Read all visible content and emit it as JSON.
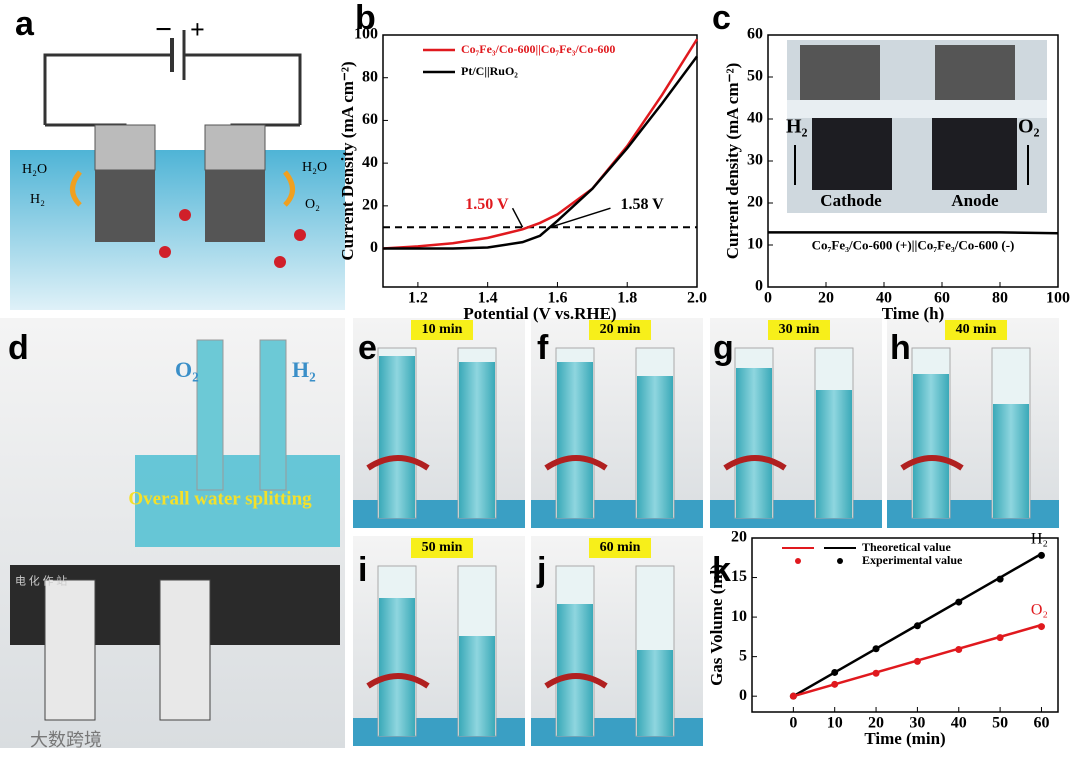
{
  "panel_labels": [
    "a",
    "b",
    "c",
    "d",
    "e",
    "f",
    "g",
    "h",
    "i",
    "j",
    "k"
  ],
  "diagram_a": {
    "battery_minus": "−",
    "battery_plus": "+",
    "left_in": "H₂O",
    "left_out": "H₂",
    "right_in": "H₂O",
    "right_out": "O₂"
  },
  "chart_data": [
    {
      "type": "line",
      "xlabel": "Potential (V vs.RHE)",
      "ylabel": "Current Density (mA cm⁻²)",
      "x": [
        1.1,
        1.2,
        1.3,
        1.4,
        1.5,
        1.55,
        1.6,
        1.7,
        1.8,
        1.9,
        2.0
      ],
      "series": [
        {
          "name": "Co₇Fe₃/Co-600||Co₇Fe₃/Co-600",
          "color": "#e0191e",
          "values": [
            0,
            1,
            2.5,
            5,
            9,
            12,
            16,
            28,
            48,
            72,
            98
          ]
        },
        {
          "name": "Pt/C||RuO₂",
          "color": "#000000",
          "values": [
            0,
            0,
            0,
            0.5,
            3,
            6,
            13,
            28,
            47,
            68,
            90
          ]
        }
      ],
      "xlim": [
        1.1,
        2.0
      ],
      "ylim": [
        -18,
        100
      ],
      "xticks": [
        1.2,
        1.4,
        1.6,
        1.8,
        {
          "value": 2.0,
          "label": "2.0"
        }
      ],
      "yticks": [
        0,
        20,
        40,
        60,
        80,
        100
      ],
      "reference_line": 10,
      "legend": "upper left",
      "annotations": [
        {
          "label": "1.50 V",
          "x": 1.5,
          "y": 10,
          "color": "#e0191e"
        },
        {
          "label": "1.58 V",
          "x": 1.58,
          "y": 10,
          "color": "#000000"
        }
      ]
    },
    {
      "type": "line",
      "xlabel": "Time (h)",
      "ylabel": "Current density (mA cm⁻²)",
      "x": [
        0,
        20,
        40,
        60,
        80,
        100
      ],
      "series": [
        {
          "name": "Co₇Fe₃/Co-600 (+)||Co₇Fe₃/Co-600 (-)",
          "color": "#000000",
          "values": [
            13,
            13,
            13,
            13,
            13,
            12.8
          ]
        }
      ],
      "xlim": [
        0,
        100
      ],
      "ylim": [
        0,
        60
      ],
      "xticks": [
        0,
        20,
        40,
        60,
        80,
        100
      ],
      "yticks": [
        0,
        10,
        20,
        30,
        40,
        50,
        60
      ],
      "series_labels": "below"
    },
    {
      "type": "line",
      "xlabel": "Time (min)",
      "ylabel": "Gas Volume (ml)",
      "x": [
        0,
        10,
        20,
        30,
        40,
        50,
        60
      ],
      "series": [
        {
          "name": "H₂",
          "color": "#000000",
          "values": [
            0,
            3,
            6,
            9,
            12,
            15,
            18
          ],
          "experimental": [
            0,
            3,
            6,
            8.9,
            11.9,
            14.8,
            17.8
          ]
        },
        {
          "name": "O₂",
          "color": "#e0191e",
          "values": [
            0,
            1.5,
            3,
            4.5,
            6,
            7.5,
            9
          ],
          "experimental": [
            0,
            1.5,
            2.9,
            4.4,
            5.9,
            7.4,
            8.8
          ]
        }
      ],
      "xlim": [
        -10,
        64
      ],
      "ylim": [
        -2,
        20
      ],
      "xticks": [
        0,
        10,
        20,
        30,
        40,
        50,
        60
      ],
      "yticks": [
        0,
        5,
        10,
        15,
        20
      ],
      "legend_entries": [
        "Theoretical value",
        "Experimental value"
      ],
      "series_labels": "end"
    }
  ],
  "inset_c": {
    "left_gas": "H₂",
    "right_gas": "O₂",
    "left_electrode": "Cathode",
    "right_electrode": "Anode"
  },
  "photo_d": {
    "left_gas": "O₂",
    "right_gas": "H₂",
    "caption": "Overall water splitting",
    "instrument_text": "电 化 作 站"
  },
  "photos": [
    {
      "label": "10 min"
    },
    {
      "label": "20 min"
    },
    {
      "label": "30 min"
    },
    {
      "label": "40 min"
    },
    {
      "label": "50 min"
    },
    {
      "label": "60 min"
    }
  ],
  "watermark": "大数跨境"
}
